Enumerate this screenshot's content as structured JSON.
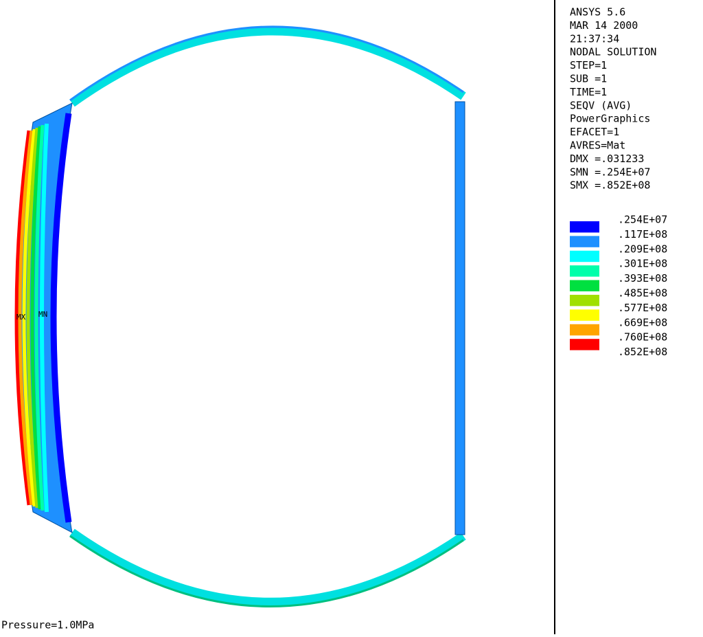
{
  "info": [
    "ANSYS 5.6",
    "MAR 14 2000",
    "21:37:34",
    "NODAL SOLUTION",
    "STEP=1",
    "SUB =1",
    "TIME=1",
    "SEQV      (AVG)",
    "PowerGraphics",
    "EFACET=1",
    "AVRES=Mat",
    "DMX =.031233",
    "SMN =.254E+07",
    "SMX =.852E+08"
  ],
  "legend": {
    "levels": [
      ".254E+07",
      ".117E+08",
      ".209E+08",
      ".301E+08",
      ".393E+08",
      ".485E+08",
      ".577E+08",
      ".669E+08",
      ".760E+08",
      ".852E+08"
    ],
    "colors": [
      "#0000ff",
      "#1e90ff",
      "#00ffff",
      "#00ffaa",
      "#00e040",
      "#a0e000",
      "#ffff00",
      "#ffa500",
      "#ff0000"
    ]
  },
  "markers": {
    "max": "MX",
    "min": "MN"
  },
  "footer": "Pressure=1.0MPa"
}
